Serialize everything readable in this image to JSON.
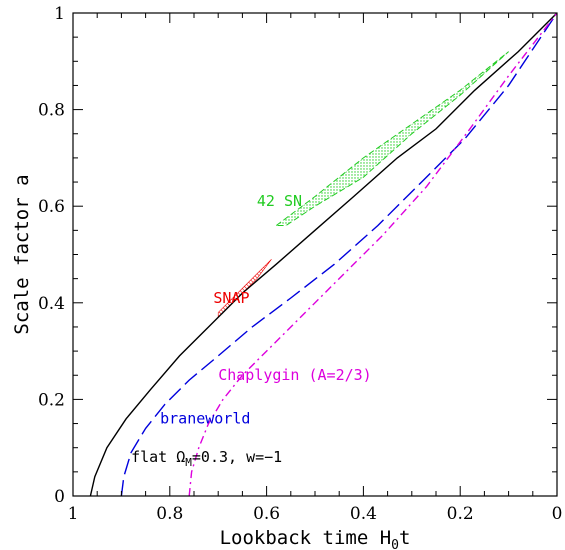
{
  "chart_data": {
    "type": "line",
    "xlabel_main": "Lookback time H",
    "xlabel_sub": "0",
    "xlabel_tail": "t",
    "ylabel": "Scale factor a",
    "xlim": [
      1,
      0
    ],
    "ylim": [
      0,
      1
    ],
    "x_ticks": [
      1,
      0.8,
      0.6,
      0.4,
      0.2,
      0
    ],
    "x_tick_labels": [
      "1",
      "0.8",
      "0.6",
      "0.4",
      "0.2",
      "0"
    ],
    "y_ticks": [
      0,
      0.2,
      0.4,
      0.6,
      0.8,
      1
    ],
    "y_tick_labels": [
      "0",
      "0.2",
      "0.4",
      "0.6",
      "0.8",
      "1"
    ],
    "grid": false,
    "series": [
      {
        "style": "solid",
        "color": "#000000",
        "x": [
          0.964,
          0.955,
          0.93,
          0.89,
          0.84,
          0.78,
          0.72,
          0.65,
          0.58,
          0.5,
          0.42,
          0.33,
          0.25,
          0.17,
          0.08,
          0
        ],
        "y": [
          0,
          0.04,
          0.1,
          0.16,
          0.22,
          0.29,
          0.35,
          0.42,
          0.48,
          0.55,
          0.62,
          0.7,
          0.76,
          0.84,
          0.92,
          1
        ]
      },
      {
        "style": "longdash",
        "color": "#0000dd",
        "x": [
          0.9,
          0.895,
          0.88,
          0.85,
          0.81,
          0.76,
          0.7,
          0.63,
          0.55,
          0.46,
          0.37,
          0.28,
          0.19,
          0.1,
          0
        ],
        "y": [
          0,
          0.04,
          0.09,
          0.14,
          0.19,
          0.24,
          0.29,
          0.35,
          0.41,
          0.48,
          0.56,
          0.65,
          0.74,
          0.85,
          1
        ]
      },
      {
        "style": "dashdot",
        "color": "#dd00dd",
        "x": [
          0.76,
          0.755,
          0.74,
          0.72,
          0.69,
          0.65,
          0.6,
          0.53,
          0.45,
          0.36,
          0.27,
          0.18,
          0.1,
          0
        ],
        "y": [
          0,
          0.05,
          0.1,
          0.15,
          0.2,
          0.25,
          0.3,
          0.37,
          0.45,
          0.54,
          0.64,
          0.76,
          0.87,
          1
        ]
      }
    ],
    "bands": [
      {
        "label": "42 SN",
        "color": "#22cc22",
        "x": [
          0.58,
          0.1,
          0.56
        ],
        "y_upper": [
          0.56,
          0.92,
          0.56
        ],
        "polygon_x": [
          0.58,
          0.5,
          0.4,
          0.3,
          0.2,
          0.1,
          0.2,
          0.3,
          0.4,
          0.5,
          0.56
        ],
        "polygon_y": [
          0.56,
          0.62,
          0.7,
          0.77,
          0.84,
          0.92,
          0.83,
          0.75,
          0.66,
          0.6,
          0.56
        ]
      },
      {
        "label": "SNAP",
        "color": "#ee0000",
        "polygon_x": [
          0.7,
          0.66,
          0.62,
          0.59,
          0.6,
          0.64,
          0.68,
          0.7
        ],
        "polygon_y": [
          0.37,
          0.41,
          0.45,
          0.49,
          0.48,
          0.44,
          0.4,
          0.38
        ]
      }
    ],
    "annotations": [
      {
        "text": "42 SN",
        "color": "#22cc22",
        "x": 0.62,
        "y": 0.6
      },
      {
        "text": "SNAP",
        "color": "#ee0000",
        "x": 0.71,
        "y": 0.4
      },
      {
        "text": "Chaplygin (A=2/3)",
        "color": "#dd00dd",
        "x": 0.7,
        "y": 0.24
      },
      {
        "text": "braneworld",
        "color": "#0000dd",
        "x": 0.82,
        "y": 0.15
      },
      {
        "text_main": "flat Ω",
        "text_sub": "M",
        "text_tail": "=0.3,  w=−1",
        "color": "#000000",
        "x": 0.88,
        "y": 0.07
      }
    ]
  }
}
